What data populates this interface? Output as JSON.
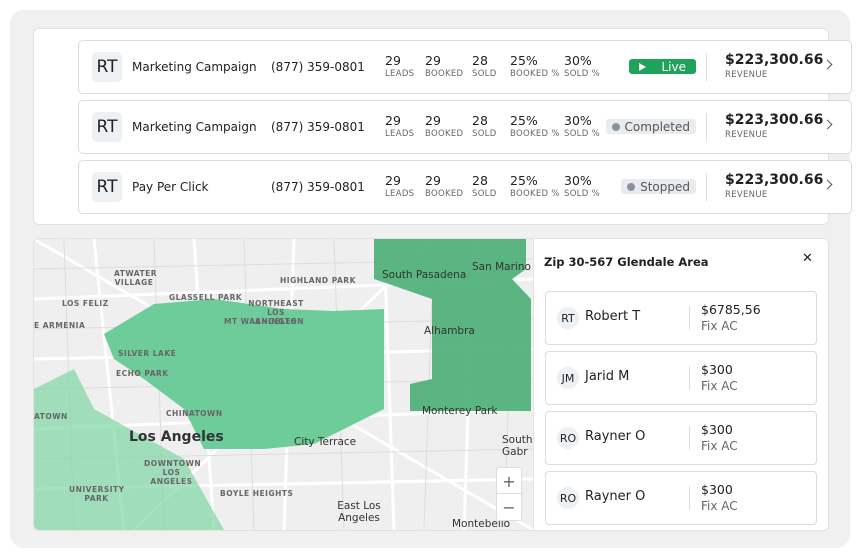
{
  "campaigns": [
    {
      "initials": "RT",
      "name": "Marketing Campaign",
      "phone": "(877) 359-0801",
      "stats": [
        {
          "value": "29",
          "label": "LEADS"
        },
        {
          "value": "29",
          "label": "BOOKED"
        },
        {
          "value": "28",
          "label": "SOLD"
        },
        {
          "value": "25%",
          "label": "BOOKED %"
        },
        {
          "value": "30%",
          "label": "SOLD %"
        }
      ],
      "status": "Live",
      "revenue": "$223,300.66",
      "revenue_label": "REVENUE"
    },
    {
      "initials": "RT",
      "name": "Marketing Campaign",
      "phone": "(877) 359-0801",
      "stats": [
        {
          "value": "29",
          "label": "LEADS"
        },
        {
          "value": "29",
          "label": "BOOKED"
        },
        {
          "value": "28",
          "label": "SOLD"
        },
        {
          "value": "25%",
          "label": "BOOKED %"
        },
        {
          "value": "30%",
          "label": "SOLD %"
        }
      ],
      "status": "Completed",
      "revenue": "$223,300.66",
      "revenue_label": "REVENUE"
    },
    {
      "initials": "RT",
      "name": "Pay Per Click",
      "phone": "(877) 359-0801",
      "stats": [
        {
          "value": "29",
          "label": "LEADS"
        },
        {
          "value": "29",
          "label": "BOOKED"
        },
        {
          "value": "28",
          "label": "SOLD"
        },
        {
          "value": "25%",
          "label": "BOOKED %"
        },
        {
          "value": "30%",
          "label": "SOLD %"
        }
      ],
      "status": "Stopped",
      "revenue": "$223,300.66",
      "revenue_label": "REVENUE"
    }
  ],
  "map": {
    "labels": [
      "ATWATER VILLAGE",
      "HIGHLAND PARK",
      "South Pasadena",
      "San Marino",
      "LOS FELIZ",
      "GLASSELL PARK",
      "NORTHEAST LOS ANGELES",
      "MT WASHINGTON",
      "E ARMENIA",
      "Alhambra",
      "SILVER LAKE",
      "ECHO PARK",
      "CHINATOWN",
      "ATOWN",
      "Monterey Park",
      "Los Angeles",
      "City Terrace",
      "DOWNTOWN LOS ANGELES",
      "UNIVERSITY PARK",
      "BOYLE HEIGHTS",
      "East Los Angeles",
      "Montebello",
      "South Gabr"
    ],
    "zoom_in": "+",
    "zoom_out": "−"
  },
  "panel": {
    "title": "Zip 30-567 Glendale Area",
    "close": "✕",
    "items": [
      {
        "initials": "RT",
        "name": "Robert T",
        "price": "$6785,56",
        "service": "Fix AC"
      },
      {
        "initials": "JM",
        "name": "Jarid M",
        "price": "$300",
        "service": "Fix AC"
      },
      {
        "initials": "RO",
        "name": "Rayner O",
        "price": "$300",
        "service": "Fix AC"
      },
      {
        "initials": "RO",
        "name": "Rayner O",
        "price": "$300",
        "service": "Fix AC"
      }
    ]
  }
}
